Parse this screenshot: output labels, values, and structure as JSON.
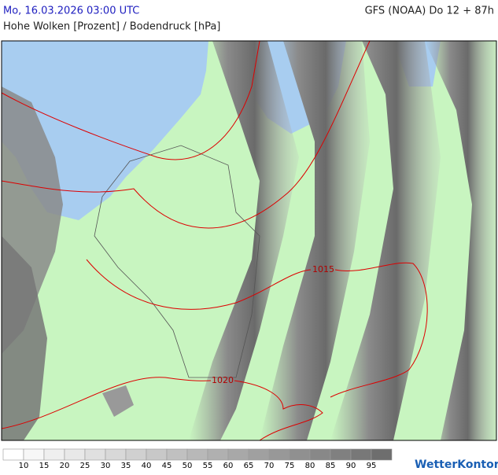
{
  "header": {
    "datetime": "Mo, 16.03.2026 03:00 UTC",
    "model": "GFS (NOAA) Do 12 + 87h",
    "parameter": "Hohe Wolken [Prozent] / Bodendruck [hPa]"
  },
  "isobars": [
    {
      "label": "1015"
    },
    {
      "label": "1020"
    }
  ],
  "legend": {
    "colors": [
      "#ffffff",
      "#f7f7f7",
      "#efefef",
      "#e8e8e8",
      "#e0e0e0",
      "#d8d8d8",
      "#d0d0d0",
      "#c8c8c8",
      "#c0c0c0",
      "#b8b8b8",
      "#b0b0b0",
      "#a8a8a8",
      "#a0a0a0",
      "#989898",
      "#909090",
      "#888888",
      "#808080",
      "#787878",
      "#6e6e6e"
    ],
    "labels": [
      10,
      15,
      20,
      25,
      30,
      35,
      40,
      45,
      50,
      55,
      60,
      65,
      70,
      75,
      80,
      85,
      90,
      95
    ]
  },
  "logo": "WetterKontor"
}
